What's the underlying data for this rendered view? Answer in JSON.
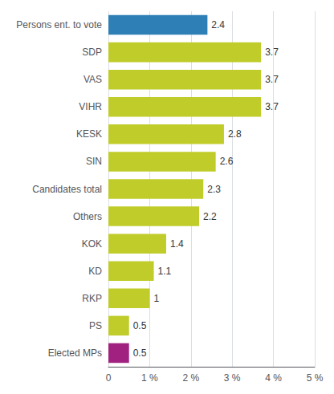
{
  "chart_data": {
    "type": "bar",
    "orientation": "horizontal",
    "categories": [
      "Persons ent. to vote",
      "SDP",
      "VAS",
      "VIHR",
      "KESK",
      "SIN",
      "Candidates total",
      "Others",
      "KOK",
      "KD",
      "RKP",
      "PS",
      "Elected MPs"
    ],
    "values": [
      2.4,
      3.7,
      3.7,
      3.7,
      2.8,
      2.6,
      2.3,
      2.2,
      1.4,
      1.1,
      1.0,
      0.5,
      0.5
    ],
    "colors": [
      "#2E7FB5",
      "#BFCC2A",
      "#BFCC2A",
      "#BFCC2A",
      "#BFCC2A",
      "#BFCC2A",
      "#BFCC2A",
      "#BFCC2A",
      "#BFCC2A",
      "#BFCC2A",
      "#BFCC2A",
      "#BFCC2A",
      "#A0217F"
    ],
    "xlim": [
      0,
      5
    ],
    "xticks": [
      0,
      {
        "value": 1,
        "label": "1 %"
      },
      {
        "value": 2,
        "label": "2 %"
      },
      {
        "value": 3,
        "label": "3 %"
      },
      {
        "value": 4,
        "label": "4 %"
      },
      {
        "value": 5,
        "label": "5 %"
      }
    ],
    "grid": true,
    "data_labels": true
  }
}
